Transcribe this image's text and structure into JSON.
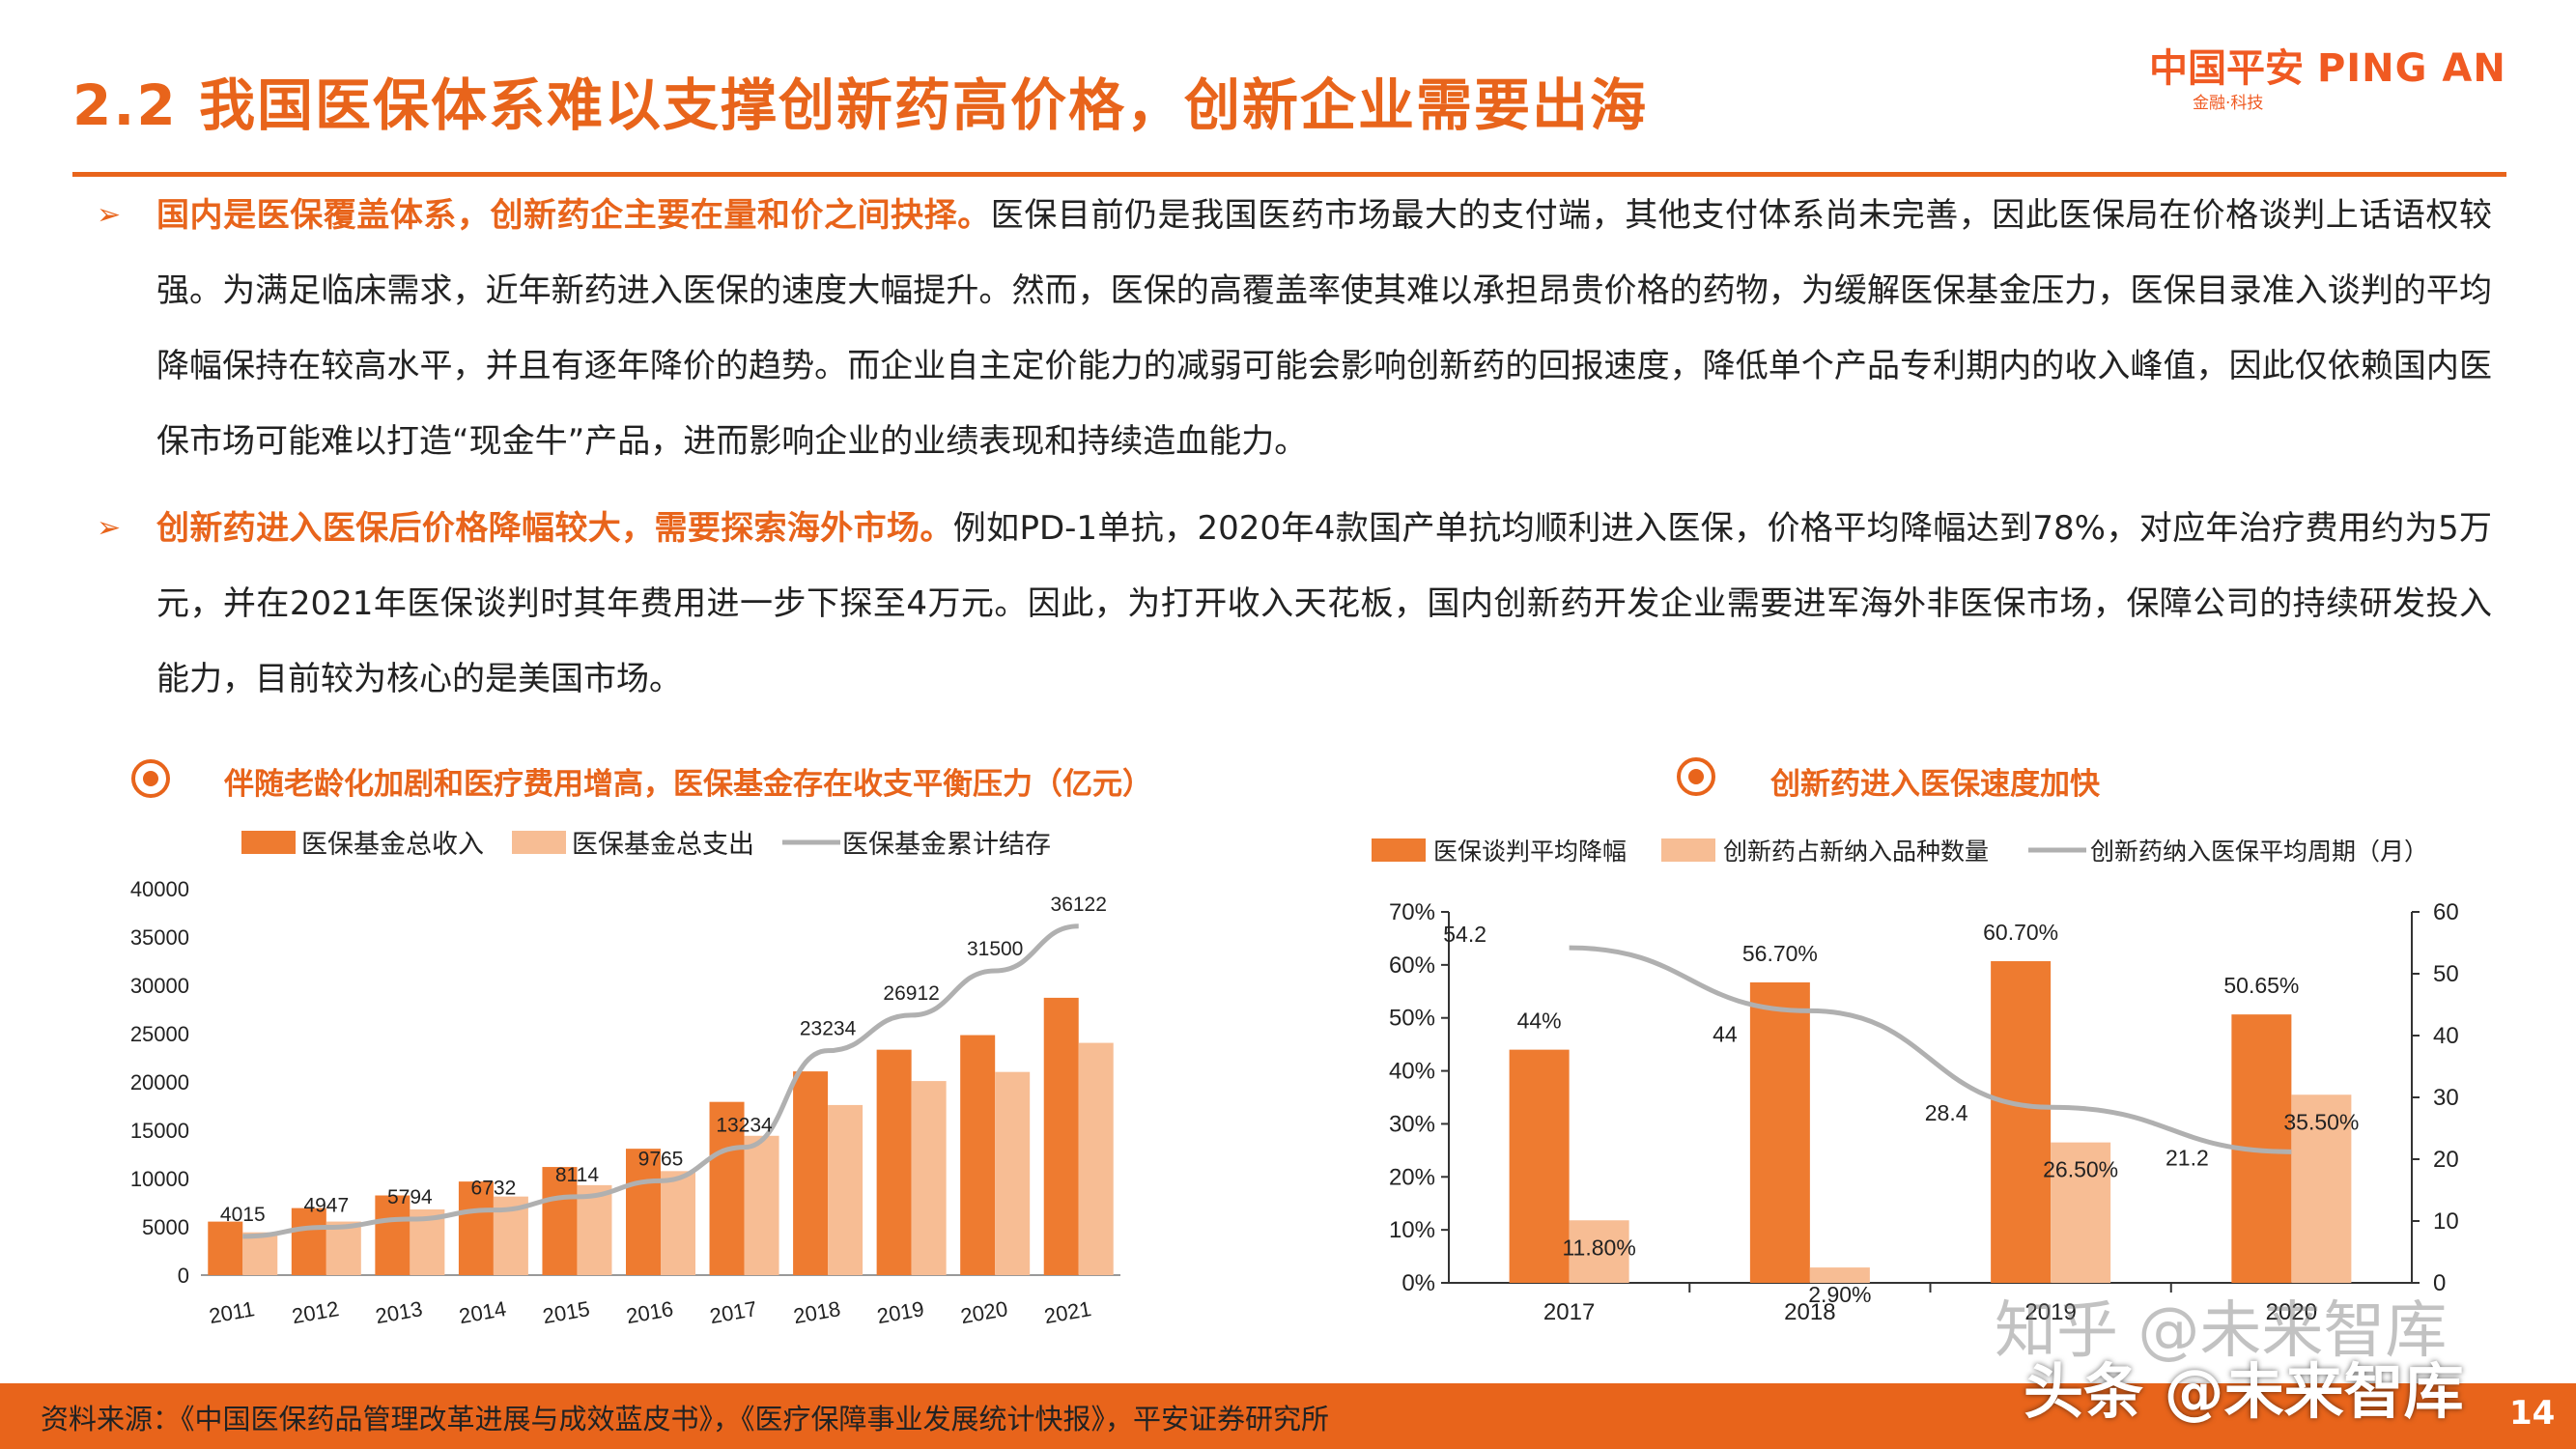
{
  "header": {
    "title": "2.2 我国医保体系难以支撑创新药高价格，创新企业需要出海",
    "logo_cn": "中国平安",
    "logo_en": "PING AN",
    "logo_sub": "金融·科技"
  },
  "bullets": [
    {
      "symbol": "➢",
      "lead": "国内是医保覆盖体系，创新药企主要在量和价之间抉择。",
      "body": "医保目前仍是我国医药市场最大的支付端，其他支付体系尚未完善，因此医保局在价格谈判上话语权较强。为满足临床需求，近年新药进入医保的速度大幅提升。然而，医保的高覆盖率使其难以承担昂贵价格的药物，为缓解医保基金压力，医保目录准入谈判的平均降幅保持在较高水平，并且有逐年降价的趋势。而企业自主定价能力的减弱可能会影响创新药的回报速度，降低单个产品专利期内的收入峰值，因此仅依赖国内医保市场可能难以打造“现金牛”产品，进而影响企业的业绩表现和持续造血能力。"
    },
    {
      "symbol": "➢",
      "lead": "创新药进入医保后价格降幅较大，需要探索海外市场。",
      "body": "例如PD-1单抗，2020年4款国产单抗均顺利进入医保，价格平均降幅达到78%，对应年治疗费用约为5万元，并在2021年医保谈判时其年费用进一步下探至4万元。因此，为打开收入天花板，国内创新药开发企业需要进军海外非医保市场，保障公司的持续研发投入能力，目前较为核心的是美国市场。"
    }
  ],
  "charts": {
    "left_title": "伴随老龄化加剧和医疗费用增高，医保基金存在收支平衡压力（亿元）",
    "right_title": "创新药进入医保速度加快"
  },
  "chart_data": [
    {
      "type": "bar",
      "title": "伴随老龄化加剧和医疗费用增高，医保基金存在收支平衡压力（亿元）",
      "categories": [
        "2011",
        "2012",
        "2013",
        "2014",
        "2015",
        "2016",
        "2017",
        "2018",
        "2019",
        "2020",
        "2021"
      ],
      "series": [
        {
          "name": "医保基金总收入",
          "type": "bar",
          "color": "#ee7b30",
          "values": [
            5539,
            6939,
            8248,
            9687,
            11193,
            13084,
            17932,
            21090,
            23334,
            24846,
            28710
          ]
        },
        {
          "name": "医保基金总支出",
          "type": "bar",
          "color": "#f7bd94",
          "values": [
            4431,
            5544,
            6801,
            8134,
            9312,
            10767,
            14422,
            17608,
            20091,
            21032,
            24043
          ]
        },
        {
          "name": "医保基金累计结存",
          "type": "line",
          "color": "#b0b0b0",
          "values": [
            4015,
            4947,
            5794,
            6732,
            8114,
            9765,
            13234,
            23234,
            26912,
            31500,
            36122
          ],
          "labels": [
            "4015",
            "4947",
            "5794",
            "6732",
            "8114",
            "9765",
            "13234",
            "23234",
            "26912",
            "31500",
            "36122"
          ]
        }
      ],
      "yticks": [
        "0",
        "5000",
        "10000",
        "15000",
        "20000",
        "25000",
        "30000",
        "35000",
        "40000"
      ],
      "ylim": [
        0,
        40000
      ],
      "legend": "top"
    },
    {
      "type": "bar",
      "title": "创新药进入医保速度加快",
      "categories": [
        "2017",
        "2018",
        "2019",
        "2020"
      ],
      "series": [
        {
          "name": "医保谈判平均降幅",
          "type": "bar",
          "axis": "left",
          "color": "#ee7b30",
          "values": [
            44,
            56.7,
            60.7,
            50.65
          ],
          "labels": [
            "44%",
            "56.70%",
            "60.70%",
            "50.65%"
          ]
        },
        {
          "name": "创新药占新纳入品种数量",
          "type": "bar",
          "axis": "left",
          "color": "#f7bd94",
          "values": [
            11.8,
            2.9,
            26.5,
            35.5
          ],
          "labels": [
            "11.80%",
            "2.90%",
            "26.50%",
            "35.50%"
          ]
        },
        {
          "name": "创新药纳入医保平均周期（月）",
          "type": "line",
          "axis": "right",
          "color": "#b0b0b0",
          "values": [
            54.2,
            44,
            28.4,
            21.2
          ],
          "labels": [
            "54.2",
            "44",
            "28.4",
            "21.2"
          ]
        }
      ],
      "y_left_ticks": [
        "0%",
        "10%",
        "20%",
        "30%",
        "40%",
        "50%",
        "60%",
        "70%"
      ],
      "y_left_lim": [
        0,
        70
      ],
      "y_right_ticks": [
        "0",
        "10",
        "20",
        "30",
        "40",
        "50",
        "60"
      ],
      "y_right_lim": [
        0,
        60
      ],
      "legend": "top"
    }
  ],
  "footer": {
    "source": "资料来源：《中国医保药品管理改革进展与成效蓝皮书》，《医疗保障事业发展统计快报》，平安证券研究所",
    "page": "14"
  },
  "watermark": {
    "line1": "知乎 @未来智库",
    "line2": "头条 @未来智库"
  }
}
